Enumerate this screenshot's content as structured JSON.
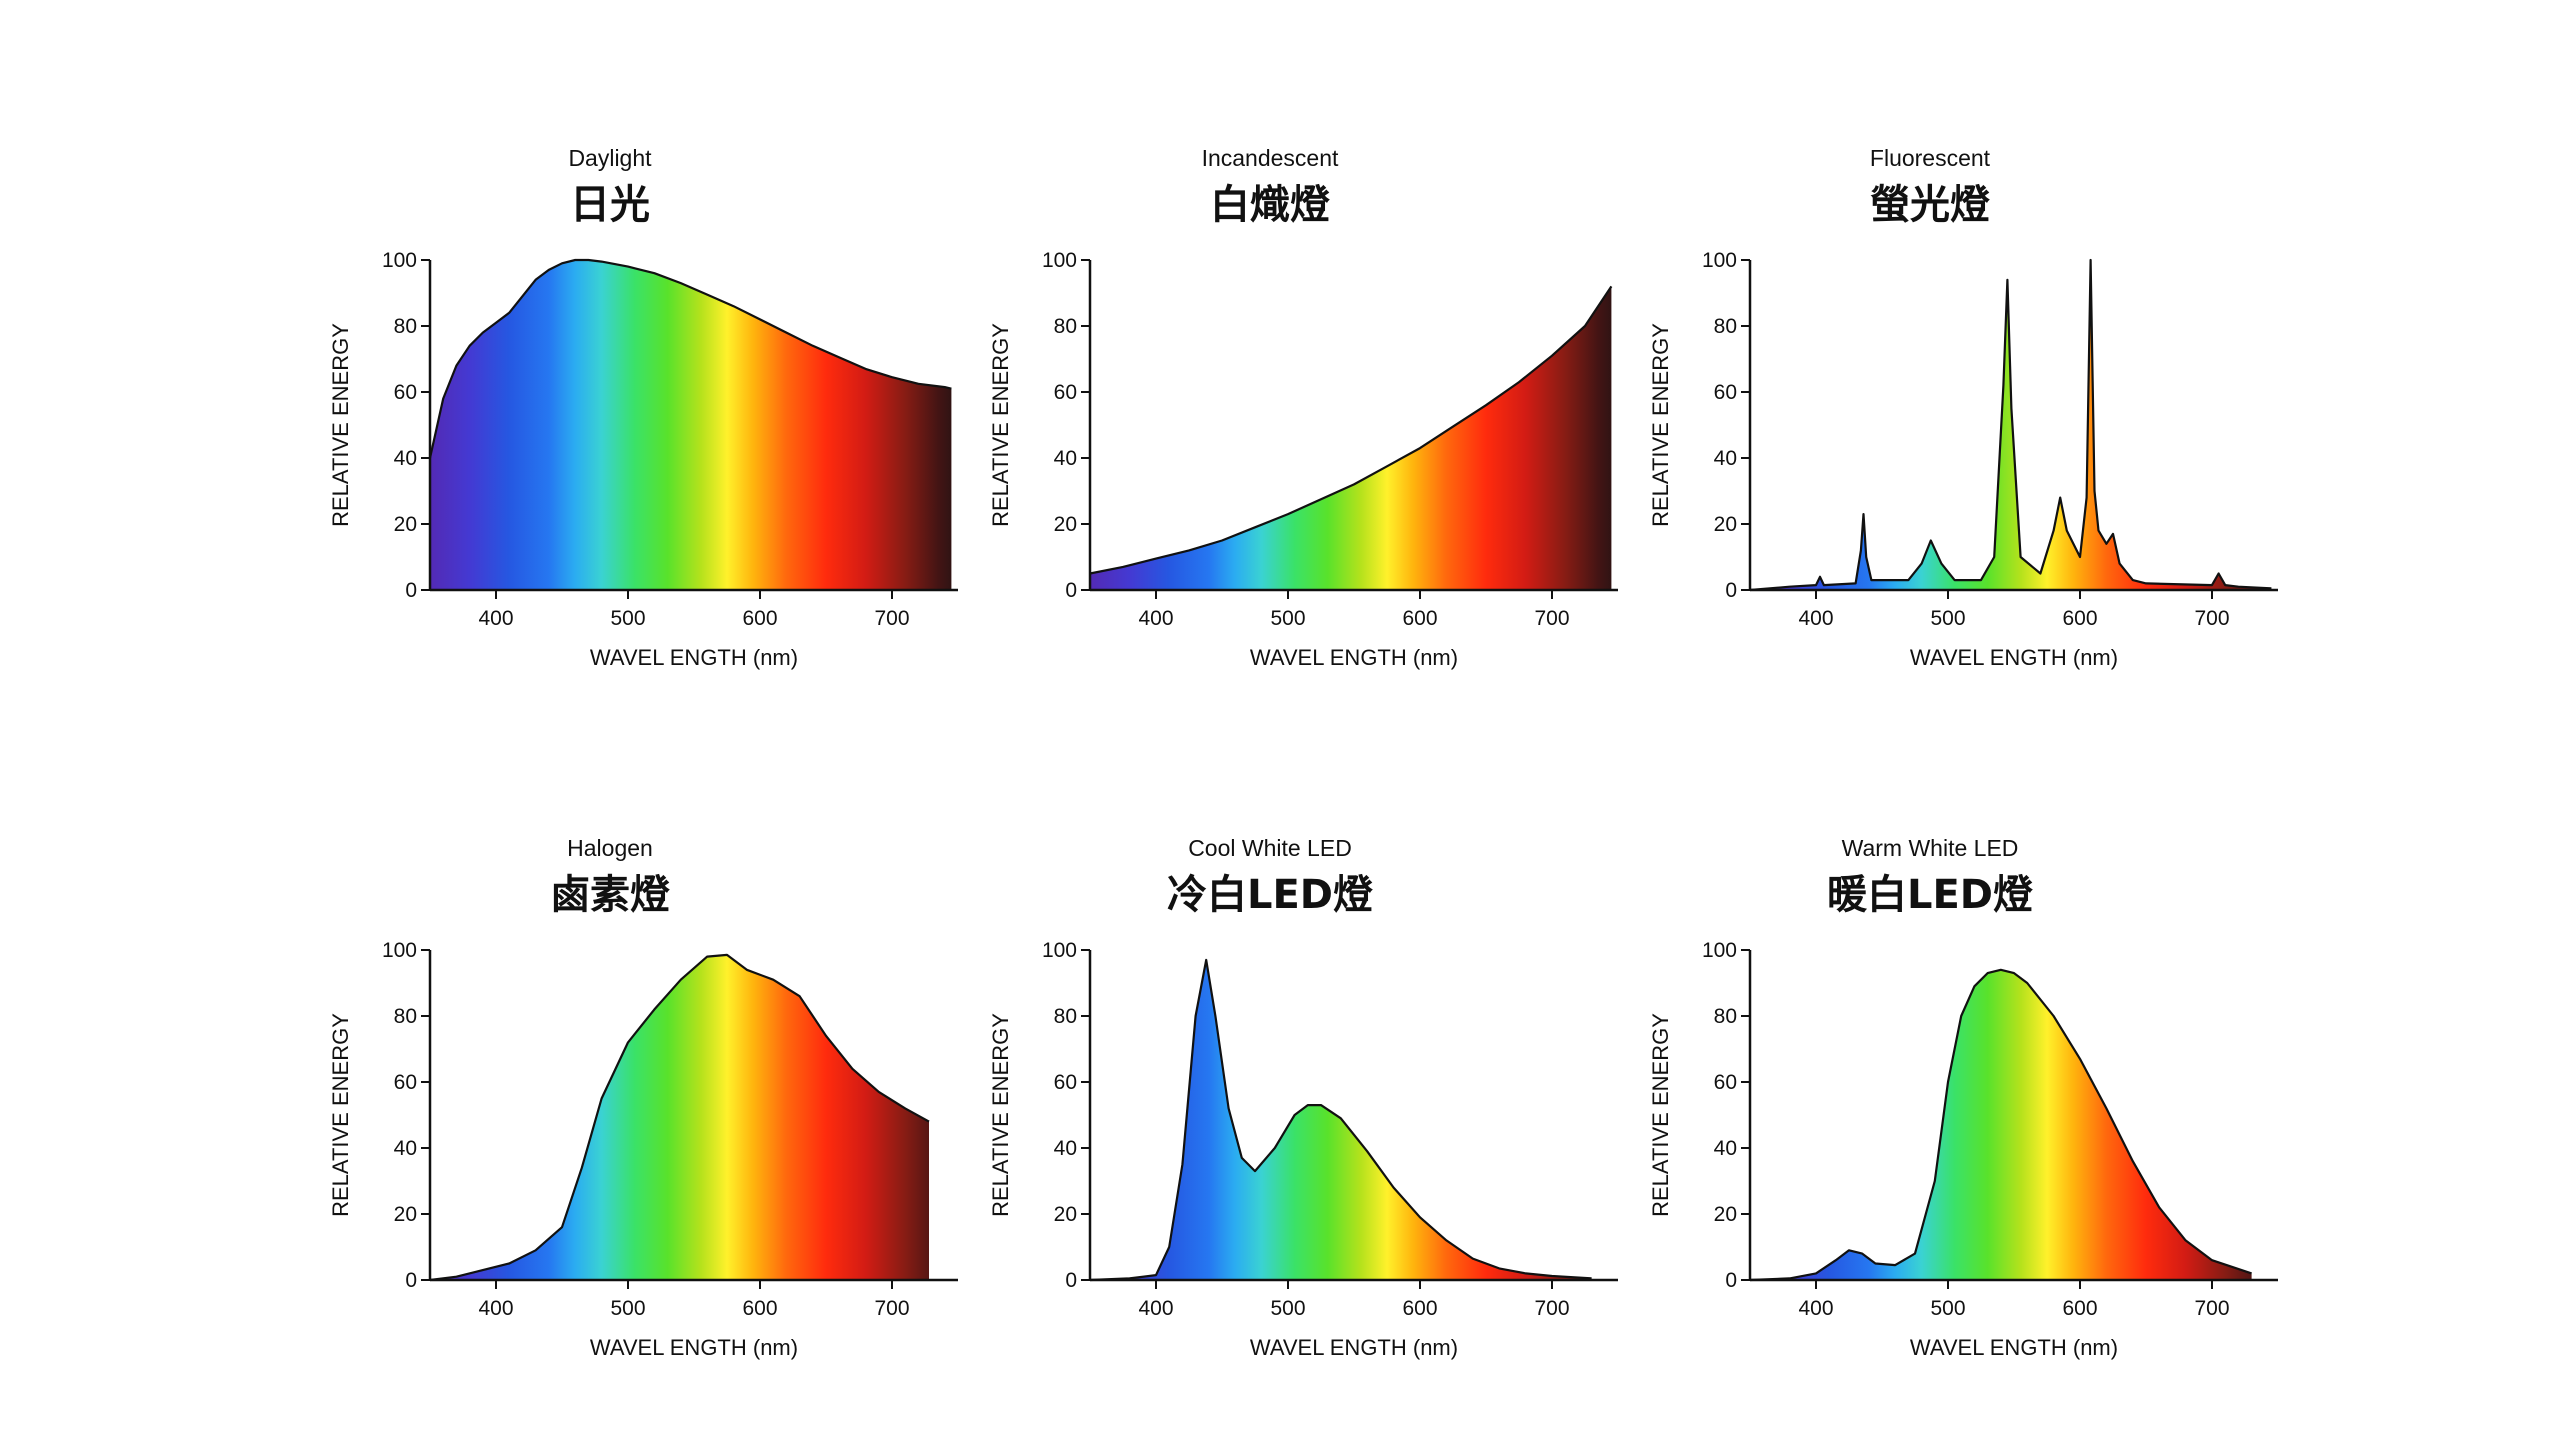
{
  "chart_data": [
    {
      "type": "area",
      "title": "Daylight",
      "subtitle": "日光",
      "xlabel": "WAVEL ENGTH (nm)",
      "ylabel": "RELATIVE ENERGY",
      "xlim": [
        350,
        750
      ],
      "ylim": [
        0,
        100
      ],
      "xticks": [
        400,
        500,
        600,
        700
      ],
      "yticks": [
        0,
        20,
        40,
        60,
        80,
        100
      ],
      "x": [
        350,
        360,
        370,
        380,
        390,
        400,
        410,
        420,
        430,
        440,
        450,
        460,
        470,
        480,
        500,
        520,
        540,
        560,
        580,
        600,
        620,
        640,
        660,
        680,
        700,
        720,
        740,
        745
      ],
      "y": [
        40,
        58,
        68,
        74,
        78,
        81,
        84,
        89,
        94,
        97,
        99,
        100,
        100,
        99.5,
        98,
        96,
        93,
        89.5,
        86,
        82,
        78,
        74,
        70.5,
        67,
        64.5,
        62.5,
        61.5,
        61
      ]
    },
    {
      "type": "area",
      "title": "Incandescent",
      "subtitle": "白熾燈",
      "xlabel": "WAVEL ENGTH (nm)",
      "ylabel": "RELATIVE ENERGY",
      "xlim": [
        350,
        750
      ],
      "ylim": [
        0,
        100
      ],
      "xticks": [
        400,
        500,
        600,
        700
      ],
      "yticks": [
        0,
        20,
        40,
        60,
        80,
        100
      ],
      "x": [
        350,
        375,
        400,
        425,
        450,
        475,
        500,
        525,
        550,
        575,
        600,
        625,
        650,
        675,
        700,
        725,
        745
      ],
      "y": [
        5,
        7,
        9.5,
        12,
        15,
        19,
        23,
        27.5,
        32,
        37.5,
        43,
        49.5,
        56,
        63,
        71,
        80,
        92
      ]
    },
    {
      "type": "area",
      "title": "Fluorescent",
      "subtitle": "螢光燈",
      "xlabel": "WAVEL ENGTH (nm)",
      "ylabel": "RELATIVE ENERGY",
      "xlim": [
        350,
        750
      ],
      "ylim": [
        0,
        100
      ],
      "xticks": [
        400,
        500,
        600,
        700
      ],
      "yticks": [
        0,
        20,
        40,
        60,
        80,
        100
      ],
      "x": [
        350,
        380,
        400,
        403,
        406,
        430,
        434,
        436,
        438,
        442,
        470,
        480,
        487,
        495,
        505,
        525,
        535,
        542,
        545,
        548,
        555,
        570,
        580,
        585,
        590,
        600,
        605,
        608,
        611,
        614,
        620,
        625,
        630,
        640,
        650,
        700,
        705,
        710,
        720,
        745
      ],
      "y": [
        0,
        1,
        1.5,
        4,
        1.5,
        2,
        12,
        23,
        10,
        3,
        3,
        8,
        15,
        8,
        3,
        3,
        10,
        62,
        94,
        55,
        10,
        5,
        18,
        28,
        18,
        10,
        28,
        100,
        30,
        18,
        14,
        17,
        8,
        3,
        2,
        1.5,
        5,
        1.5,
        1,
        0.5
      ]
    },
    {
      "type": "area",
      "title": "Halogen",
      "subtitle": "鹵素燈",
      "xlabel": "WAVEL ENGTH (nm)",
      "ylabel": "RELATIVE ENERGY",
      "xlim": [
        350,
        750
      ],
      "ylim": [
        0,
        100
      ],
      "xticks": [
        400,
        500,
        600,
        700
      ],
      "yticks": [
        0,
        20,
        40,
        60,
        80,
        100
      ],
      "x": [
        350,
        370,
        390,
        410,
        430,
        450,
        465,
        480,
        500,
        520,
        540,
        560,
        575,
        590,
        610,
        630,
        650,
        670,
        690,
        710,
        728
      ],
      "y": [
        0,
        1,
        3,
        5,
        9,
        16,
        34,
        55,
        72,
        82,
        91,
        98,
        98.5,
        94,
        91,
        86,
        74,
        64,
        57,
        52,
        48
      ]
    },
    {
      "type": "area",
      "title": "Cool White LED",
      "subtitle": "冷白LED燈",
      "xlabel": "WAVEL ENGTH (nm)",
      "ylabel": "RELATIVE ENERGY",
      "xlim": [
        350,
        750
      ],
      "ylim": [
        0,
        100
      ],
      "xticks": [
        400,
        500,
        600,
        700
      ],
      "yticks": [
        0,
        20,
        40,
        60,
        80,
        100
      ],
      "x": [
        350,
        380,
        400,
        410,
        420,
        430,
        438,
        445,
        455,
        465,
        475,
        490,
        505,
        515,
        525,
        540,
        560,
        580,
        600,
        620,
        640,
        660,
        680,
        700,
        730
      ],
      "y": [
        0,
        0.5,
        1.5,
        10,
        35,
        80,
        97,
        80,
        52,
        37,
        33,
        40,
        50,
        53,
        53,
        49,
        39,
        28,
        19,
        12,
        6.5,
        3.5,
        2,
        1.2,
        0.5
      ]
    },
    {
      "type": "area",
      "title": "Warm White LED",
      "subtitle": "暖白LED燈",
      "xlabel": "WAVEL ENGTH (nm)",
      "ylabel": "RELATIVE ENERGY",
      "xlim": [
        350,
        750
      ],
      "ylim": [
        0,
        100
      ],
      "xticks": [
        400,
        500,
        600,
        700
      ],
      "yticks": [
        0,
        20,
        40,
        60,
        80,
        100
      ],
      "x": [
        350,
        380,
        400,
        415,
        425,
        435,
        445,
        460,
        475,
        490,
        500,
        510,
        520,
        530,
        540,
        550,
        560,
        580,
        600,
        620,
        640,
        660,
        680,
        700,
        730
      ],
      "y": [
        0,
        0.5,
        2,
        6,
        9,
        8,
        5,
        4.5,
        8,
        30,
        60,
        80,
        89,
        93,
        94,
        93,
        90,
        80,
        67,
        52,
        36,
        22,
        12,
        6,
        2
      ]
    }
  ]
}
